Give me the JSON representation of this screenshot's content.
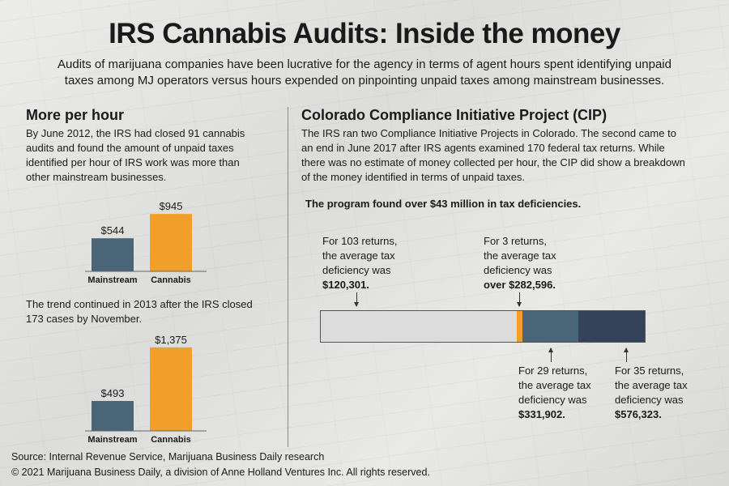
{
  "title": "IRS Cannabis Audits: Inside the money",
  "subtitle": "Audits of marijuana companies have been lucrative for the agency in terms of agent hours spent identifying unpaid taxes among MJ operators versus hours expended on pinpointing unpaid taxes among mainstream businesses.",
  "left": {
    "heading": "More per hour",
    "intro": "By June 2012, the IRS had closed 91 cannabis audits and found the amount of unpaid taxes identified per hour of IRS work was more than other mainstream businesses.",
    "trend": "The trend continued in 2013 after the IRS closed 173 cases by November."
  },
  "right": {
    "heading": "Colorado Compliance Initiative Project (CIP)",
    "intro": "The IRS ran two Compliance Initiative Projects in Colorado. The second came to an end in June 2017 after IRS agents examined 170 federal tax returns. While there was no estimate of money collected per hour, the CIP did show a breakdown of the money identified in terms of unpaid taxes.",
    "program_note": "The program found over $43 million in tax deficiencies."
  },
  "callouts": [
    {
      "line1": "For 103 returns,",
      "line2": "the average tax",
      "line3": "deficiency was",
      "amount": "$120,301."
    },
    {
      "line1": "For 3 returns,",
      "line2": "the average tax",
      "line3": "deficiency was",
      "amount": "over $282,596."
    },
    {
      "line1": "For 29 returns,",
      "line2": "the average tax",
      "line3": "deficiency was",
      "amount": "$331,902."
    },
    {
      "line1": "For 35 returns,",
      "line2": "the average tax",
      "line3": "deficiency was",
      "amount": "$576,323."
    }
  ],
  "footer": {
    "source": "Source: Internal Revenue Service, Marijuana Business Daily research",
    "copyright": "© 2021 Marijuana Business Daily, a division of Anne Holland Ventures Inc. All rights reserved."
  },
  "colors": {
    "mainstream": "#4a6478",
    "cannabis": "#f0a02a",
    "seg_103": "#dcdcdc",
    "seg_3": "#f0a02a",
    "seg_29": "#4a6478",
    "seg_35": "#34435a"
  },
  "chart_data": [
    {
      "type": "bar",
      "categories": [
        "Mainstream",
        "Cannabis"
      ],
      "values": [
        544,
        945
      ],
      "value_labels": [
        "$544",
        "$945"
      ]
    },
    {
      "type": "bar",
      "categories": [
        "Mainstream",
        "Cannabis"
      ],
      "values": [
        493,
        1375
      ],
      "value_labels": [
        "$493",
        "$1,375"
      ]
    },
    {
      "type": "bar",
      "orientation": "horizontal-stacked",
      "title": "The program found over $43 million in tax deficiencies.",
      "categories": [
        "103 returns",
        "3 returns",
        "29 returns",
        "35 returns"
      ],
      "values": [
        103,
        3,
        29,
        35
      ],
      "average_deficiency": [
        120301,
        282596,
        331902,
        576323
      ]
    }
  ]
}
